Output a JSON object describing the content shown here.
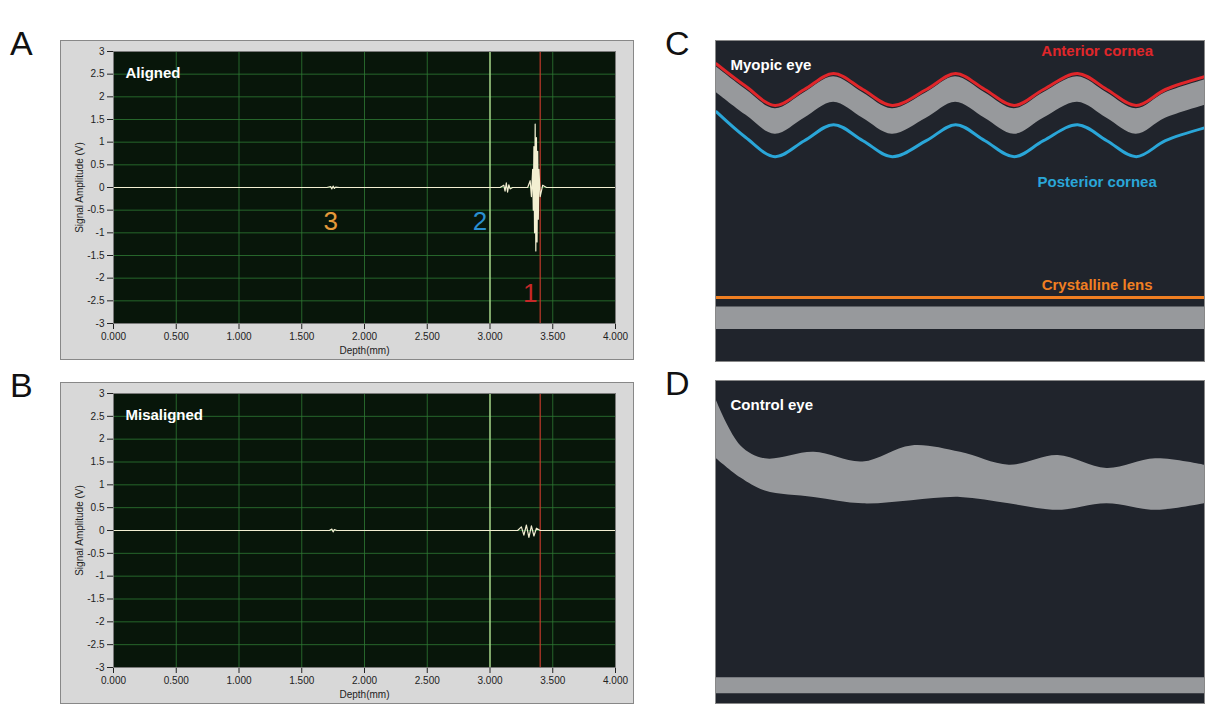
{
  "chart_data": [
    {
      "panel": "A",
      "type": "line",
      "title": "Aligned",
      "x_label": "Depth(mm)",
      "y_label": "Signal Amplitude (V)",
      "xlim": [
        0,
        4
      ],
      "xticks": [
        {
          "value": 0,
          "label": "0.000"
        },
        {
          "value": 0.5,
          "label": "0.500"
        },
        {
          "value": 1,
          "label": "1.000"
        },
        {
          "value": 1.5,
          "label": "1.500"
        },
        {
          "value": 2,
          "label": "2.000"
        },
        {
          "value": 2.5,
          "label": "2.500"
        },
        {
          "value": 3,
          "label": "3.000"
        },
        {
          "value": 3.5,
          "label": "3.500"
        },
        {
          "value": 4,
          "label": "4.000"
        }
      ],
      "ylim": [
        -3,
        3
      ],
      "yticks": [
        -3,
        -2.5,
        -2,
        -1.5,
        -1,
        -0.5,
        0,
        0.5,
        1,
        1.5,
        2,
        2.5,
        3
      ],
      "grid": true,
      "color": "#f3efd2",
      "x": [
        0,
        1.7,
        1.73,
        1.74,
        1.75,
        1.76,
        1.77,
        1.8,
        3.08,
        3.11,
        3.12,
        3.13,
        3.14,
        3.15,
        3.16,
        3.18,
        3.3,
        3.32,
        3.33,
        3.34,
        3.345,
        3.35,
        3.355,
        3.36,
        3.365,
        3.37,
        3.375,
        3.38,
        3.385,
        3.39,
        3.4,
        3.42,
        3.45,
        4.0
      ],
      "values": [
        0,
        0,
        0.02,
        -0.03,
        0.03,
        -0.02,
        0.01,
        0,
        0,
        0.05,
        -0.08,
        0.1,
        -0.1,
        0.06,
        -0.03,
        0,
        0,
        0.15,
        -0.2,
        0.4,
        -0.5,
        0.9,
        -1.0,
        1.4,
        -1.4,
        1.1,
        -1.2,
        0.8,
        -0.7,
        0.4,
        -0.2,
        0.05,
        0,
        0
      ],
      "cursors": [
        {
          "x": 3.0,
          "color": "#c6efa0"
        },
        {
          "x": 3.4,
          "color": "#c0392b"
        }
      ],
      "annotations": [
        {
          "text": "1",
          "x": 3.32,
          "y": -2.35,
          "color": "#c62828"
        },
        {
          "text": "2",
          "x": 2.92,
          "y": -0.75,
          "color": "#2a8fd0"
        },
        {
          "text": "3",
          "x": 1.73,
          "y": -0.75,
          "color": "#e69a3a"
        }
      ]
    },
    {
      "panel": "B",
      "type": "line",
      "title": "Misaligned",
      "x_label": "Depth(mm)",
      "y_label": "Signal Amplitude (V)",
      "xlim": [
        0,
        4
      ],
      "xticks": [
        {
          "value": 0,
          "label": "0.000"
        },
        {
          "value": 0.5,
          "label": "0.500"
        },
        {
          "value": 1,
          "label": "1.000"
        },
        {
          "value": 1.5,
          "label": "1.500"
        },
        {
          "value": 2,
          "label": "2.000"
        },
        {
          "value": 2.5,
          "label": "2.500"
        },
        {
          "value": 3,
          "label": "3.000"
        },
        {
          "value": 3.5,
          "label": "3.500"
        },
        {
          "value": 4,
          "label": "4.000"
        }
      ],
      "ylim": [
        -3,
        3
      ],
      "yticks": [
        -3,
        -2.5,
        -2,
        -1.5,
        -1,
        -0.5,
        0,
        0.5,
        1,
        1.5,
        2,
        2.5,
        3
      ],
      "grid": true,
      "color": "#f3efd2",
      "x": [
        0,
        1.72,
        1.74,
        1.75,
        1.76,
        1.78,
        3.22,
        3.25,
        3.27,
        3.29,
        3.31,
        3.33,
        3.35,
        3.37,
        3.4,
        4.0
      ],
      "values": [
        0,
        0,
        0.03,
        -0.03,
        0.02,
        0,
        0,
        0.08,
        -0.1,
        0.12,
        -0.15,
        0.1,
        -0.12,
        0.05,
        0,
        0
      ],
      "cursors": [
        {
          "x": 3.0,
          "color": "#c6efa0"
        },
        {
          "x": 3.4,
          "color": "#c0392b"
        }
      ],
      "annotations": []
    },
    {
      "panel": "C",
      "type": "line",
      "title": "Myopic eye",
      "tick_labels": false,
      "xlim": [
        0,
        100
      ],
      "ylim": [
        0,
        100
      ],
      "x": [
        0,
        6,
        12,
        18,
        24,
        30,
        36,
        43,
        49,
        55,
        61,
        67,
        74,
        80,
        86,
        92,
        100
      ],
      "series": [
        {
          "name": "Anterior cornea",
          "color": "#e0262a",
          "values": [
            93,
            86,
            80,
            85,
            90,
            85,
            80,
            85,
            90,
            85,
            80,
            85,
            90,
            85,
            80,
            85,
            89
          ]
        },
        {
          "name": "Posterior cornea",
          "color": "#2aa6d8",
          "values": [
            78,
            70,
            64,
            69,
            74,
            69,
            64,
            69,
            74,
            69,
            64,
            69,
            74,
            69,
            64,
            69,
            73
          ]
        },
        {
          "name": "Crystalline lens",
          "color": "#f07f22",
          "values": [
            20,
            20,
            20,
            20,
            20,
            20,
            20,
            20,
            20,
            20,
            20,
            20,
            20,
            20,
            20,
            20,
            20
          ]
        }
      ],
      "bands": [
        {
          "x": [
            0,
            6,
            12,
            18,
            24,
            30,
            36,
            43,
            49,
            55,
            61,
            67,
            74,
            80,
            86,
            92,
            100
          ],
          "y1": [
            84,
            77,
            71,
            76,
            81,
            76,
            71,
            76,
            81,
            76,
            71,
            76,
            81,
            76,
            71,
            76,
            80
          ],
          "y2": [
            92,
            85,
            79,
            84,
            89,
            84,
            79,
            84,
            89,
            84,
            79,
            84,
            89,
            84,
            79,
            84,
            88
          ]
        },
        {
          "x": [
            0,
            100
          ],
          "y1": [
            10,
            10
          ],
          "y2": [
            17,
            17
          ]
        }
      ]
    },
    {
      "panel": "D",
      "type": "line",
      "title": "Control eye",
      "tick_labels": false,
      "xlim": [
        0,
        100
      ],
      "ylim": [
        0,
        100
      ],
      "series": [],
      "bands": [
        {
          "x": [
            0,
            5,
            10,
            20,
            30,
            40,
            50,
            60,
            70,
            80,
            90,
            100
          ],
          "y1": [
            76,
            70,
            66,
            64,
            62,
            63,
            64,
            62,
            60,
            62,
            60,
            62
          ],
          "y2": [
            94,
            80,
            76,
            78,
            75,
            80,
            78,
            74,
            77,
            73,
            76,
            74
          ]
        },
        {
          "x": [
            0,
            100
          ],
          "y1": [
            3,
            3
          ],
          "y2": [
            8,
            8
          ]
        }
      ]
    }
  ]
}
